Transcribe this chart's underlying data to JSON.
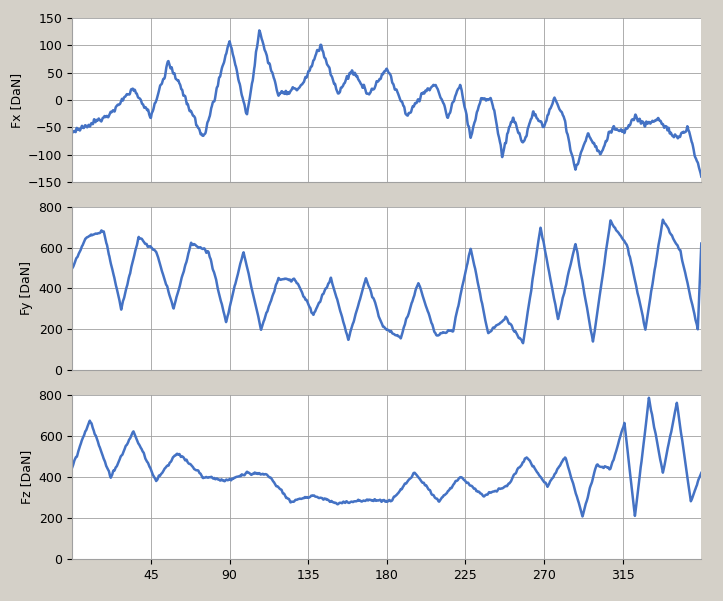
{
  "background_color": "#d4d0c8",
  "plot_bg_color": "#ffffff",
  "line_color": "#4472c4",
  "line_width": 1.8,
  "x_ticks": [
    45,
    90,
    135,
    180,
    225,
    270,
    315
  ],
  "x_min": 0,
  "x_max": 360,
  "fx_ylim": [
    -150,
    150
  ],
  "fx_yticks": [
    -150,
    -100,
    -50,
    0,
    50,
    100,
    150
  ],
  "fy_ylim": [
    0,
    800
  ],
  "fy_yticks": [
    0,
    200,
    400,
    600,
    800
  ],
  "fz_ylim": [
    0,
    800
  ],
  "fz_yticks": [
    0,
    200,
    400,
    600,
    800
  ],
  "fx_ylabel": "Fx [DaN]",
  "fy_ylabel": "Fy [DaN]",
  "fz_ylabel": "Fz [DaN]",
  "grid_color": "#a0a0a0",
  "tick_fontsize": 9,
  "label_fontsize": 9
}
